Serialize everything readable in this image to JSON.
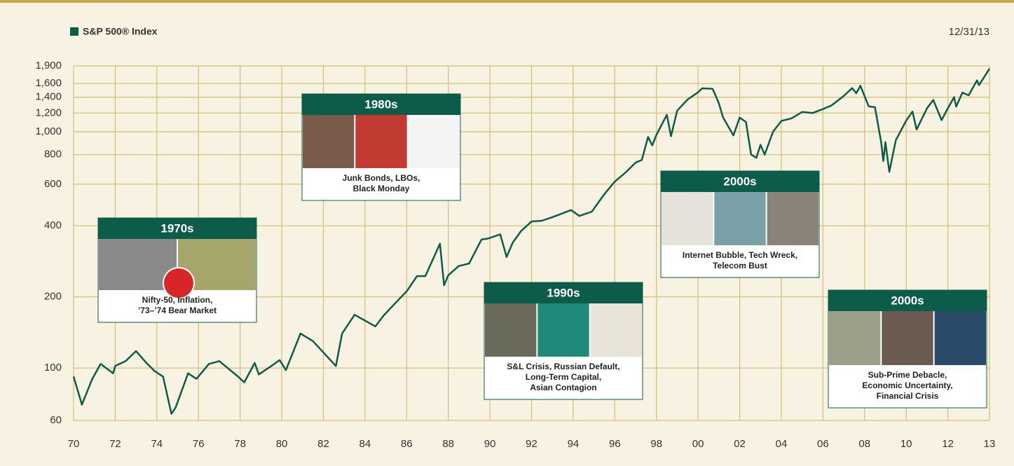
{
  "chart_data": {
    "type": "line",
    "log_scale": true,
    "grid": true,
    "date_label": "12/31/13",
    "x": [
      1970.0,
      1970.4,
      1970.9,
      1971.3,
      1971.9,
      1972.0,
      1972.5,
      1973.0,
      1973.5,
      1973.9,
      1974.3,
      1974.7,
      1974.9,
      1975.5,
      1975.9,
      1976.5,
      1977.0,
      1977.9,
      1978.2,
      1978.7,
      1978.9,
      1979.5,
      1979.9,
      1980.2,
      1980.9,
      1981.5,
      1982.6,
      1982.9,
      1983.5,
      1984.5,
      1984.9,
      1985.5,
      1986.0,
      1986.5,
      1986.9,
      1987.6,
      1987.8,
      1988.0,
      1988.5,
      1989.0,
      1989.6,
      1989.9,
      1990.5,
      1990.8,
      1991.1,
      1991.5,
      1992.0,
      1992.5,
      1993.0,
      1993.9,
      1994.3,
      1994.9,
      1995.5,
      1996.0,
      1996.5,
      1997.0,
      1997.3,
      1997.6,
      1997.8,
      1998.0,
      1998.5,
      1998.7,
      1999.0,
      1999.5,
      2000.0,
      2000.2,
      2000.7,
      2001.0,
      2001.2,
      2001.7,
      2002.0,
      2002.3,
      2002.55,
      2002.8,
      2003.0,
      2003.2,
      2003.6,
      2004.0,
      2004.5,
      2005.0,
      2005.5,
      2006.0,
      2006.4,
      2007.0,
      2007.4,
      2007.6,
      2007.8,
      2008.2,
      2008.5,
      2008.8,
      2008.9,
      2009.0,
      2009.19,
      2009.5,
      2010.0,
      2010.3,
      2010.5,
      2011.0,
      2011.3,
      2011.7,
      2012.0,
      2012.3,
      2012.4,
      2012.7,
      2013.0,
      2013.4,
      2013.5,
      2014.0
    ],
    "series": [
      {
        "name": "S&P 500® Index",
        "color": "#0d5c4a",
        "values": [
          92,
          70,
          90,
          104,
          95,
          102,
          107,
          118,
          105,
          97,
          92,
          64,
          68,
          95,
          90,
          104,
          107,
          92,
          87,
          105,
          94,
          102,
          108,
          98,
          140,
          130,
          102,
          140,
          168,
          150,
          167,
          190,
          211,
          245,
          245,
          336,
          224,
          247,
          270,
          277,
          350,
          353,
          368,
          295,
          340,
          380,
          417,
          420,
          435,
          466,
          440,
          459,
          545,
          615,
          670,
          740,
          760,
          950,
          876,
          970,
          1180,
          957,
          1229,
          1370,
          1469,
          1527,
          1520,
          1320,
          1150,
          965,
          1148,
          1100,
          800,
          776,
          880,
          800,
          1000,
          1111,
          1140,
          1212,
          1200,
          1248,
          1290,
          1418,
          1530,
          1455,
          1565,
          1280,
          1270,
          900,
          752,
          903,
          676,
          920,
          1115,
          1217,
          1022,
          1258,
          1363,
          1120,
          1257,
          1400,
          1278,
          1465,
          1426,
          1650,
          1575,
          1848
        ]
      }
    ],
    "xlim": [
      1970,
      2014
    ],
    "xticks": [
      {
        "value": 1970,
        "label": "70"
      },
      {
        "value": 1972,
        "label": "72"
      },
      {
        "value": 1974,
        "label": "74"
      },
      {
        "value": 1976,
        "label": "76"
      },
      {
        "value": 1978,
        "label": "78"
      },
      {
        "value": 1980,
        "label": "80"
      },
      {
        "value": 1982,
        "label": "82"
      },
      {
        "value": 1984,
        "label": "84"
      },
      {
        "value": 1986,
        "label": "86"
      },
      {
        "value": 1988,
        "label": "88"
      },
      {
        "value": 1990,
        "label": "90"
      },
      {
        "value": 1992,
        "label": "92"
      },
      {
        "value": 1994,
        "label": "94"
      },
      {
        "value": 1996,
        "label": "96"
      },
      {
        "value": 1998,
        "label": "98"
      },
      {
        "value": 2000,
        "label": "00"
      },
      {
        "value": 2002,
        "label": "02"
      },
      {
        "value": 2004,
        "label": "04"
      },
      {
        "value": 2006,
        "label": "06"
      },
      {
        "value": 2008,
        "label": "08"
      },
      {
        "value": 2010,
        "label": "10"
      },
      {
        "value": 2012,
        "label": "12"
      },
      {
        "value": 2014,
        "label": "13"
      }
    ],
    "ylim": [
      60,
      1900
    ],
    "yticks": [
      60,
      100,
      200,
      400,
      600,
      800,
      {
        "value": 1000,
        "label": "1,000"
      },
      {
        "value": 1200,
        "label": "1,200"
      },
      {
        "value": 1400,
        "label": "1,400"
      },
      {
        "value": 1600,
        "label": "1,600"
      },
      {
        "value": 1900,
        "label": "1,900"
      }
    ],
    "annotations": [
      {
        "title": "1970s",
        "lines": [
          "Nifty-50, Inflation,",
          "’73–’74 Bear Market"
        ]
      },
      {
        "title": "1980s",
        "lines": [
          "Junk Bonds, LBOs,",
          "Black Monday"
        ]
      },
      {
        "title": "1990s",
        "lines": [
          "S&L Crisis, Russian Default,",
          "Long-Term Capital,",
          "Asian Contagion"
        ]
      },
      {
        "title": "2000s",
        "lines": [
          "Internet Bubble, Tech Wreck,",
          "Telecom Bust"
        ]
      },
      {
        "title": "2000s",
        "lines": [
          "Sub-Prime Debacle,",
          "Economic Uncertainty,",
          "Financial Crisis"
        ]
      }
    ]
  }
}
